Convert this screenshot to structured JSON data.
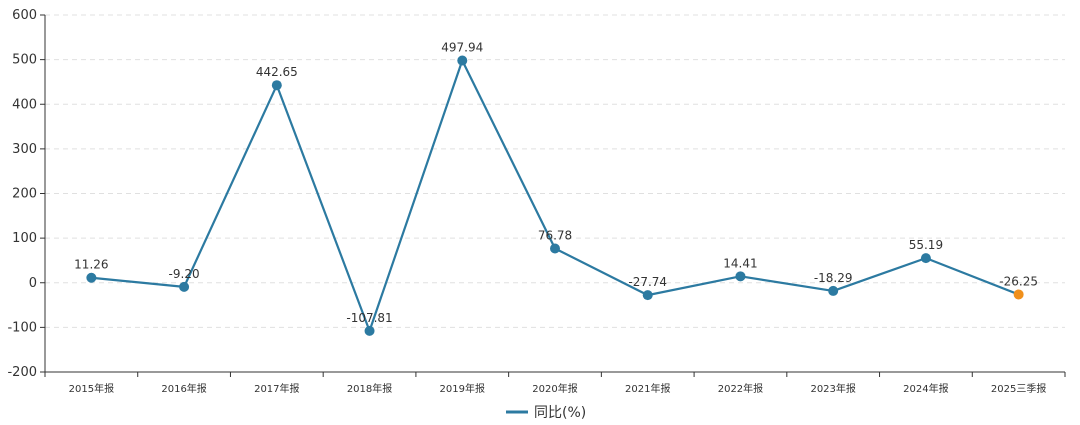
{
  "chart_data": {
    "type": "line",
    "categories": [
      "2015年报",
      "2016年报",
      "2017年报",
      "2018年报",
      "2019年报",
      "2020年报",
      "2021年报",
      "2022年报",
      "2023年报",
      "2024年报",
      "2025三季报"
    ],
    "series": [
      {
        "name": "同比(%)",
        "values": [
          11.26,
          -9.2,
          442.65,
          -107.81,
          497.94,
          76.78,
          -27.74,
          14.41,
          -18.29,
          55.19,
          -26.25
        ],
        "labels": [
          "11.26",
          "-9.20",
          "442.65",
          "-107.81",
          "497.94",
          "76.78",
          "-27.74",
          "14.41",
          "-18.29",
          "55.19",
          "-26.25"
        ],
        "color": "#2c7aa1",
        "last_point_color": "#f0901c"
      }
    ],
    "y_ticks": [
      "600",
      "500",
      "400",
      "300",
      "200",
      "100",
      "0",
      "-100",
      "-200"
    ],
    "ylim": [
      -200,
      600
    ],
    "grid": true,
    "legend": "bottom-center",
    "title": "",
    "xlabel": "",
    "ylabel": ""
  }
}
